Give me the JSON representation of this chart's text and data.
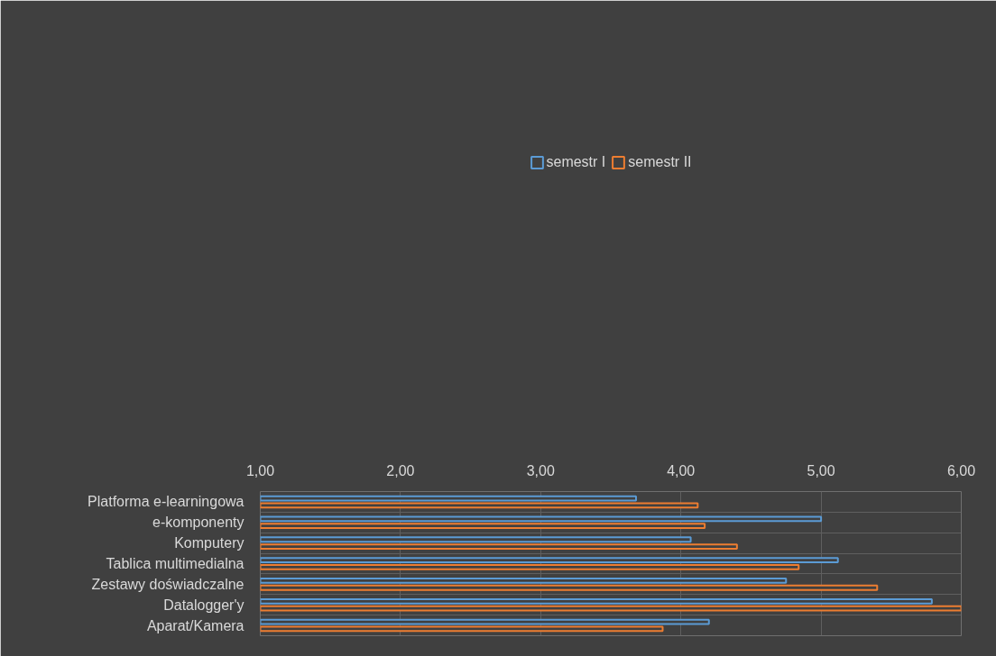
{
  "chart_data": {
    "type": "bar",
    "orientation": "horizontal",
    "categories": [
      "Platforma e-learningowa",
      "e-komponenty",
      "Komputery",
      "Tablica multimedialna",
      "Zestawy doświadczalne",
      "Datalogger'y",
      "Aparat/Kamera"
    ],
    "series": [
      {
        "name": "semestr I",
        "color": "#5b9bd5",
        "values": [
          3.68,
          5.0,
          4.07,
          5.12,
          4.75,
          5.79,
          4.2
        ]
      },
      {
        "name": "semestr II",
        "color": "#ed7d31",
        "values": [
          4.12,
          4.17,
          4.4,
          4.84,
          5.4,
          6.0,
          3.87
        ]
      }
    ],
    "xlim": [
      1,
      6
    ],
    "xticks": [
      {
        "value": 1,
        "label": "1,00"
      },
      {
        "value": 2,
        "label": "2,00"
      },
      {
        "value": 3,
        "label": "3,00"
      },
      {
        "value": 4,
        "label": "4,00"
      },
      {
        "value": 5,
        "label": "5,00"
      },
      {
        "value": 6,
        "label": "6,00"
      }
    ],
    "grid": true,
    "legend": "top"
  }
}
